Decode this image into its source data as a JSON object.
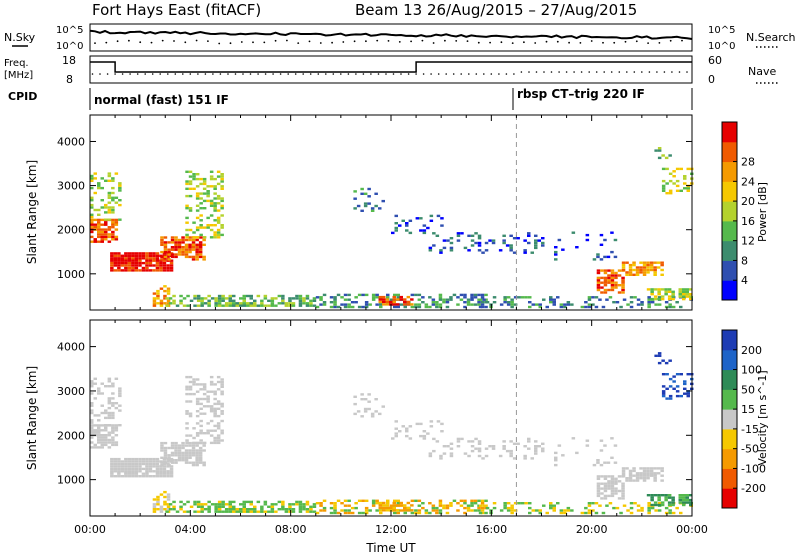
{
  "header": {
    "station": "Fort Hays East (fitACF)",
    "beam_date": "Beam 13 26/Aug/2015 – 27/Aug/2015"
  },
  "summary": {
    "nsky_label": "N.Sky",
    "nsearch_label": "N.Search",
    "freq_label_1": "Freq.",
    "freq_label_2": "[MHz]",
    "nave_label": "Nave",
    "cpid_label": "CPID",
    "nsky_ticks": [
      "10^5",
      "10^0"
    ],
    "nsearch_ticks": [
      "10^5",
      "10^0"
    ],
    "freq_ticks": [
      "18",
      "8"
    ],
    "nave_ticks": [
      "60",
      "0"
    ],
    "modes": [
      "normal (fast) 151 IF",
      "rbsp CT–trig 220 IF"
    ]
  },
  "colors": {
    "power": [
      "#0000ff",
      "#2f4fb0",
      "#3c8c6e",
      "#55b94c",
      "#b4d22d",
      "#f5c800",
      "#f59a00",
      "#f05a00",
      "#e60000"
    ],
    "velocity": [
      "#e60000",
      "#f05a00",
      "#f59a00",
      "#f5c800",
      "#c8c8c8",
      "#55b94c",
      "#2e8b57",
      "#1e64c8",
      "#1e3cb4"
    ]
  },
  "chart_data": [
    {
      "type": "heatmap",
      "name": "power",
      "xlabel": "",
      "ylabel": "Slant Range [km]",
      "xlim_hours": [
        0,
        24
      ],
      "ylim_km": [
        180,
        4600
      ],
      "y_ticks": [
        "1000",
        "2000",
        "3000",
        "4000"
      ],
      "y_tick_values": [
        1000,
        2000,
        3000,
        4000
      ],
      "colorbar_label": "Power [dB]",
      "colorbar_ticks": [
        "4",
        "8",
        "12",
        "16",
        "20",
        "24",
        "28"
      ],
      "colorbar_range": [
        0,
        30
      ],
      "mode_change_hour": 17
    },
    {
      "type": "heatmap",
      "name": "velocity",
      "xlabel": "Time UT",
      "ylabel": "Slant Range [km]",
      "xlim_hours": [
        0,
        24
      ],
      "ylim_km": [
        180,
        4600
      ],
      "x_ticks": [
        "00:00",
        "04:00",
        "08:00",
        "12:00",
        "16:00",
        "20:00",
        "00:00"
      ],
      "x_tick_values": [
        0,
        4,
        8,
        12,
        16,
        20,
        24
      ],
      "y_ticks": [
        "1000",
        "2000",
        "3000",
        "4000"
      ],
      "y_tick_values": [
        1000,
        2000,
        3000,
        4000
      ],
      "colorbar_label": "Velocity [m s^-1]",
      "colorbar_ticks": [
        "-200",
        "-100",
        "-50",
        "-15",
        "15",
        "50",
        "100",
        "200"
      ],
      "colorbar_range": [
        -250,
        250
      ],
      "mode_change_hour": 17
    }
  ]
}
